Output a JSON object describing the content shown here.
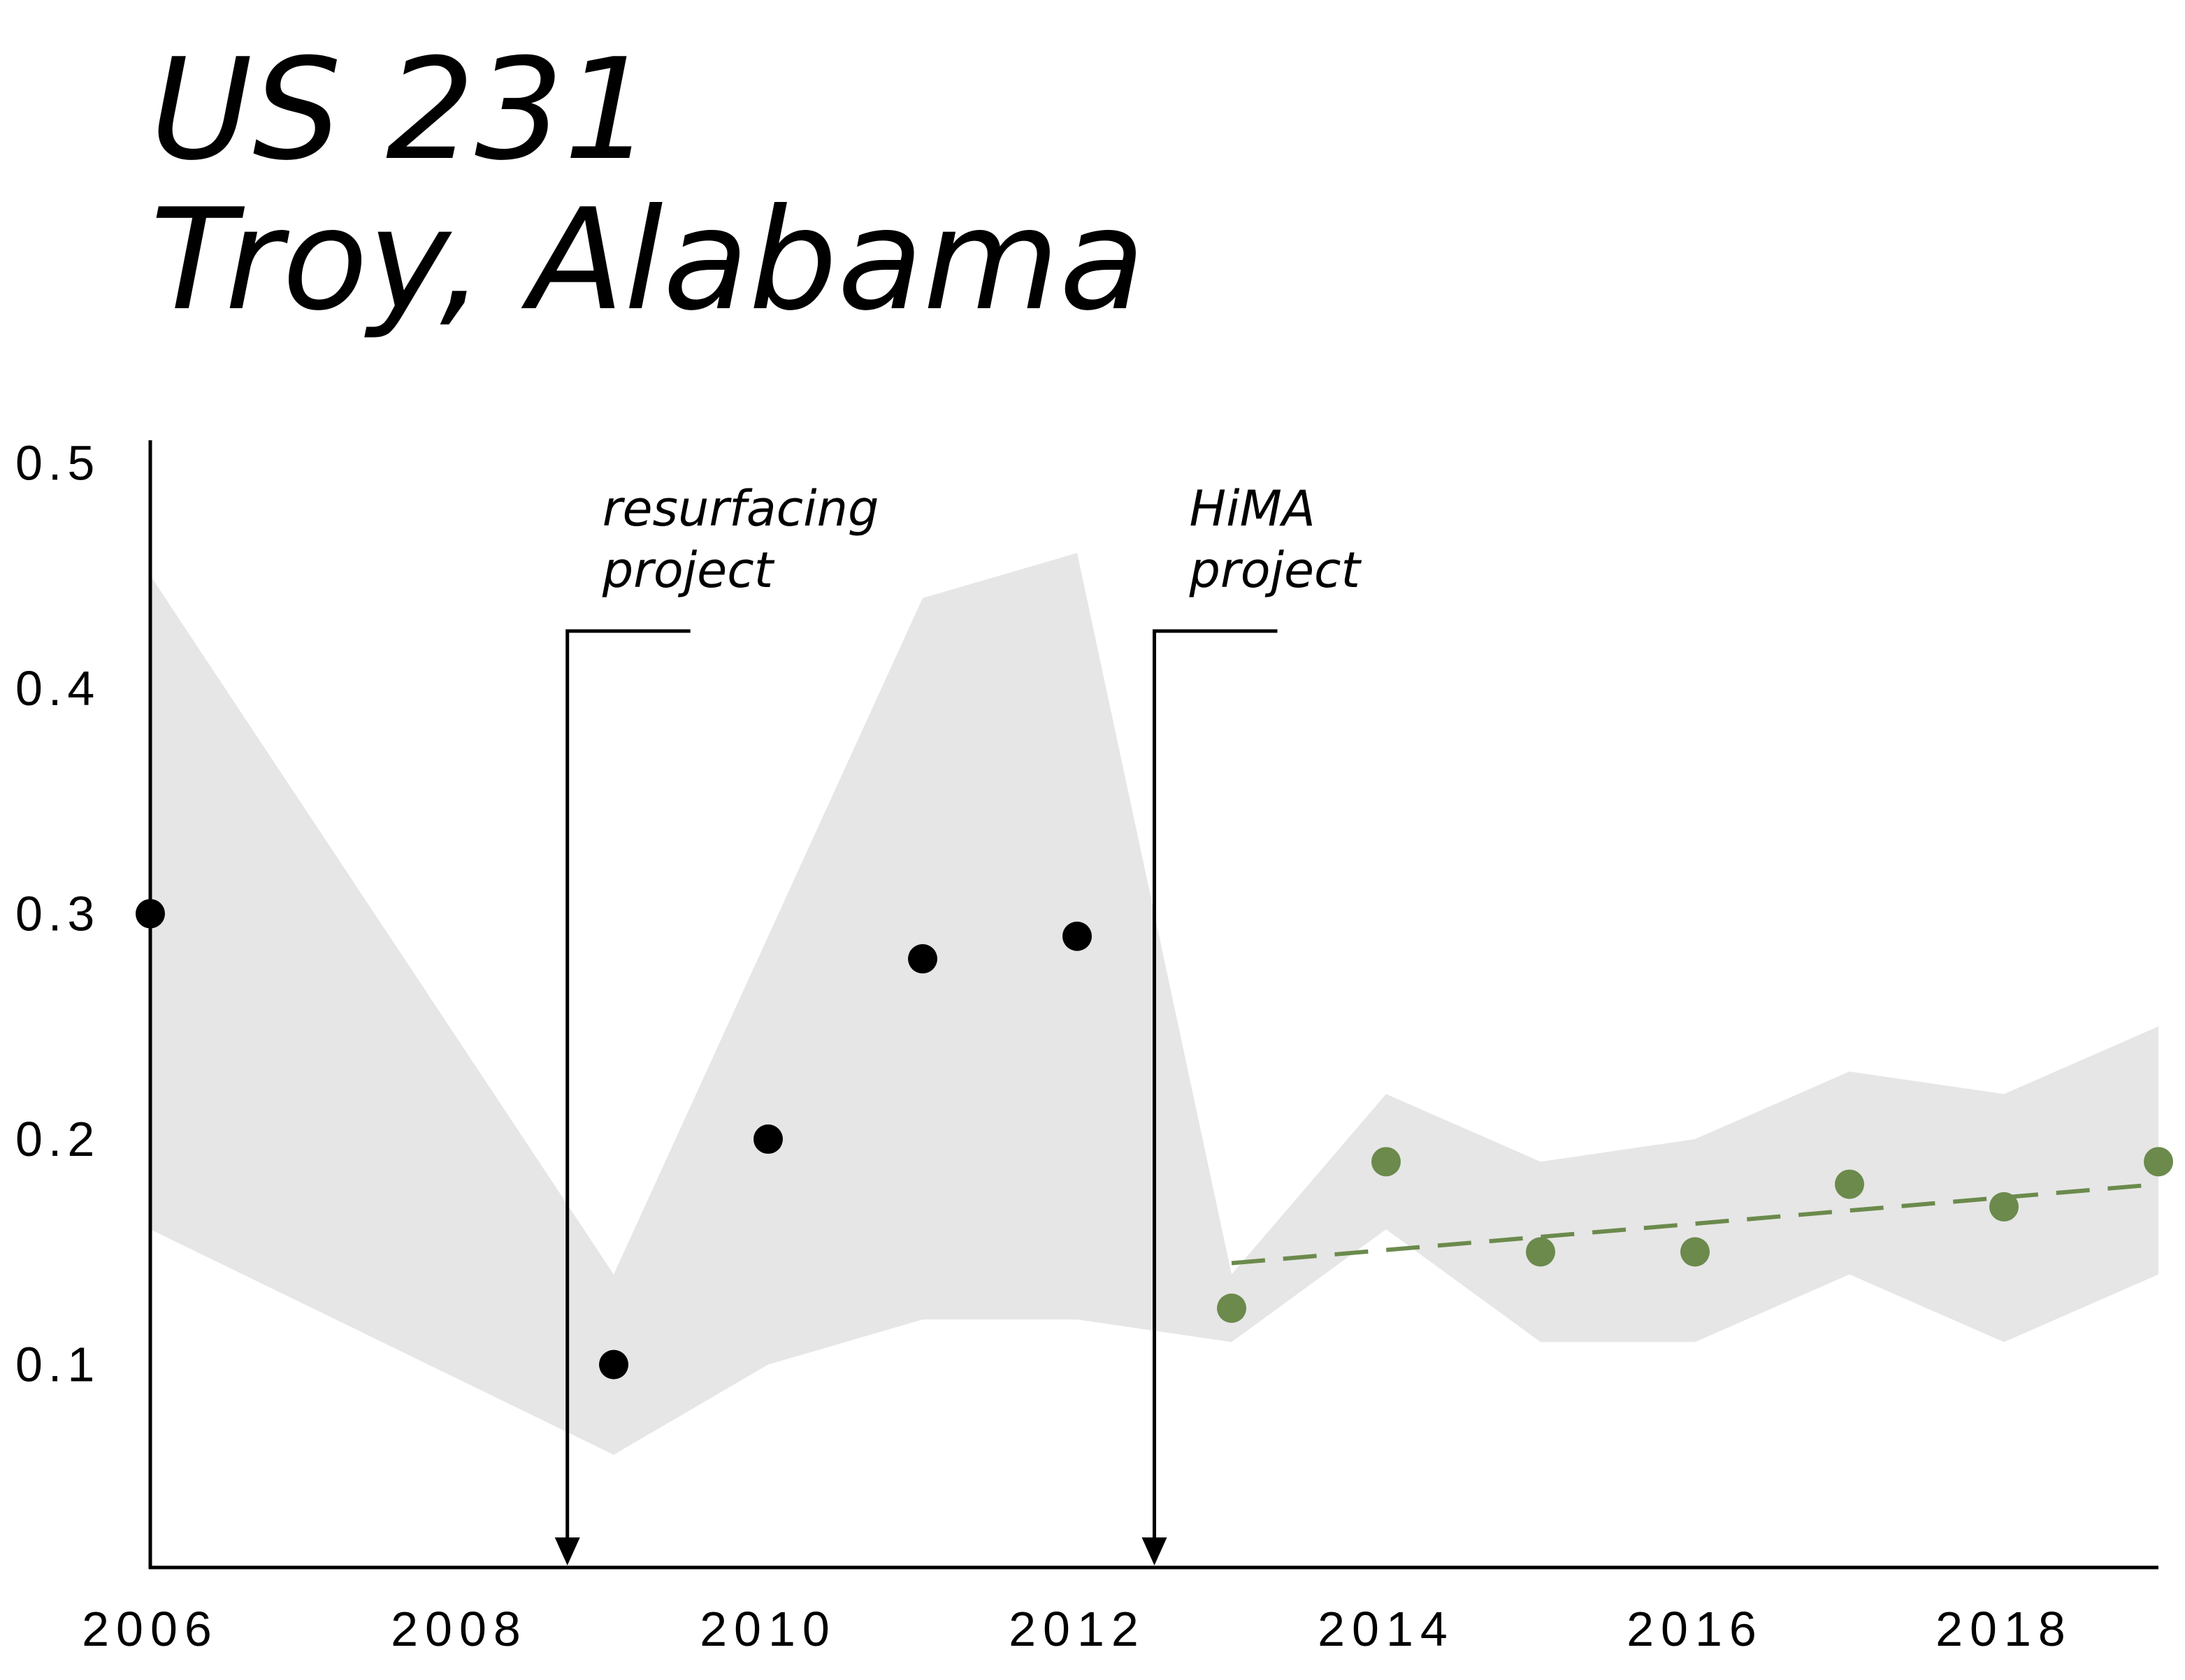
{
  "title": {
    "line1": "US 231",
    "line2": "Troy, Alabama"
  },
  "chart_data": {
    "type": "scatter",
    "title": "US 231 Troy, Alabama",
    "xlabel": "",
    "ylabel": "",
    "xlim": [
      2006,
      2019
    ],
    "ylim": [
      0.01,
      0.51
    ],
    "x_ticks": [
      "2006",
      "2008",
      "2010",
      "2012",
      "2014",
      "2016",
      "2018"
    ],
    "y_ticks": [
      "0.1",
      "0.2",
      "0.3",
      "0.4",
      "0.5"
    ],
    "grid": false,
    "legend": "none",
    "band": {
      "x": [
        2006,
        2009,
        2010,
        2011,
        2012,
        2013,
        2014,
        2015,
        2016,
        2017,
        2018,
        2019
      ],
      "lower": [
        0.16,
        0.06,
        0.1,
        0.12,
        0.12,
        0.11,
        0.16,
        0.11,
        0.11,
        0.14,
        0.11,
        0.14
      ],
      "upper": [
        0.45,
        0.14,
        0.29,
        0.44,
        0.46,
        0.14,
        0.22,
        0.19,
        0.2,
        0.23,
        0.22,
        0.25
      ],
      "color": "#e6e6e6"
    },
    "series": [
      {
        "x": [
          2006,
          2009,
          2010,
          2011,
          2012
        ],
        "y": [
          0.3,
          0.1,
          0.2,
          0.28,
          0.29
        ],
        "color": "#000000"
      },
      {
        "x": [
          2013,
          2014,
          2015,
          2016,
          2017,
          2018,
          2019
        ],
        "y": [
          0.125,
          0.19,
          0.15,
          0.15,
          0.18,
          0.17,
          0.19
        ],
        "color": "#6b8a4c"
      }
    ],
    "trendline": {
      "x": [
        2013,
        2019
      ],
      "y": [
        0.145,
        0.18
      ],
      "color": "#6b8a4c",
      "style": "dashed"
    },
    "annotations": [
      {
        "x": 2008.7,
        "text_line1": "resurfacing",
        "text_line2": "project"
      },
      {
        "x": 2012.5,
        "text_line1": "HiMA",
        "text_line2": "project"
      }
    ]
  }
}
